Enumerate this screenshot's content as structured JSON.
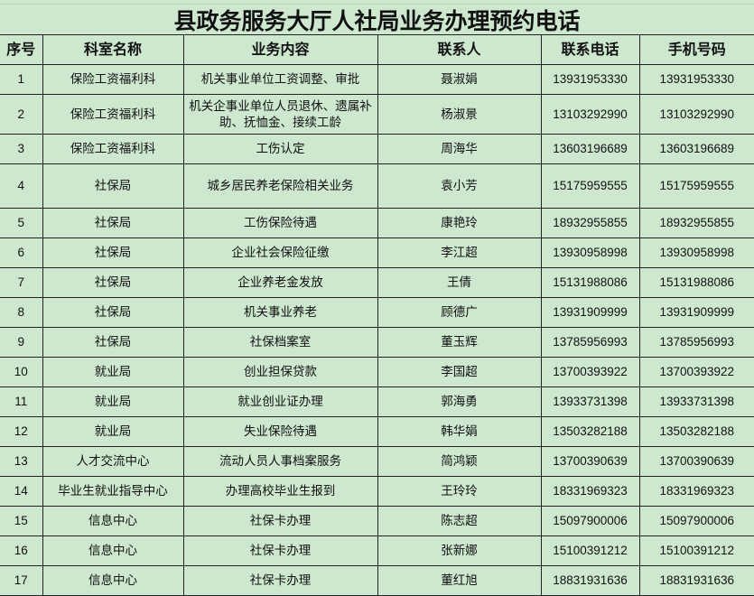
{
  "title": "县政务服务大厅人社局业务办理预约电话",
  "headers": [
    "序号",
    "科室名称",
    "业务内容",
    "联系人",
    "联系电话",
    "手机号码"
  ],
  "rows": [
    [
      "1",
      "保险工资福利科",
      "机关事业单位工资调整、审批",
      "聂淑娟",
      "13931953330",
      "13931953330"
    ],
    [
      "2",
      "保险工资福利科",
      "机关企事业单位人员退休、遗属补助、抚恤金、接续工龄",
      "杨淑景",
      "13103292990",
      "13103292990"
    ],
    [
      "3",
      "保险工资福利科",
      "工伤认定",
      "周海华",
      "13603196689",
      "13603196689"
    ],
    [
      "4",
      "社保局",
      "城乡居民养老保险相关业务",
      "袁小芳",
      "15175959555",
      "15175959555"
    ],
    [
      "5",
      "社保局",
      "工伤保险待遇",
      "康艳玲",
      "18932955855",
      "18932955855"
    ],
    [
      "6",
      "社保局",
      "企业社会保险征缴",
      "李江超",
      "13930958998",
      "13930958998"
    ],
    [
      "7",
      "社保局",
      "企业养老金发放",
      "王倩",
      "15131988086",
      "15131988086"
    ],
    [
      "8",
      "社保局",
      "机关事业养老",
      "顾德广",
      "13931909999",
      "13931909999"
    ],
    [
      "9",
      "社保局",
      "社保档案室",
      "董玉辉",
      "13785956993",
      "13785956993"
    ],
    [
      "10",
      "就业局",
      "创业担保贷款",
      "李国超",
      "13700393922",
      "13700393922"
    ],
    [
      "11",
      "就业局",
      "就业创业证办理",
      "郭海勇",
      "13933731398",
      "13933731398"
    ],
    [
      "12",
      "就业局",
      "失业保险待遇",
      "韩华娟",
      "13503282188",
      "13503282188"
    ],
    [
      "13",
      "人才交流中心",
      "流动人员人事档案服务",
      "简鸿颖",
      "13700390639",
      "13700390639"
    ],
    [
      "14",
      "毕业生就业指导中心",
      "办理高校毕业生报到",
      "王玲玲",
      "18331969323",
      "18331969323"
    ],
    [
      "15",
      "信息中心",
      "社保卡办理",
      "陈志超",
      "15097900006",
      "15097900006"
    ],
    [
      "16",
      "信息中心",
      "社保卡办理",
      "张新娜",
      "15100391212",
      "15100391212"
    ],
    [
      "17",
      "信息中心",
      "社保卡办理",
      "董红旭",
      "18831931636",
      "18831931636"
    ]
  ]
}
